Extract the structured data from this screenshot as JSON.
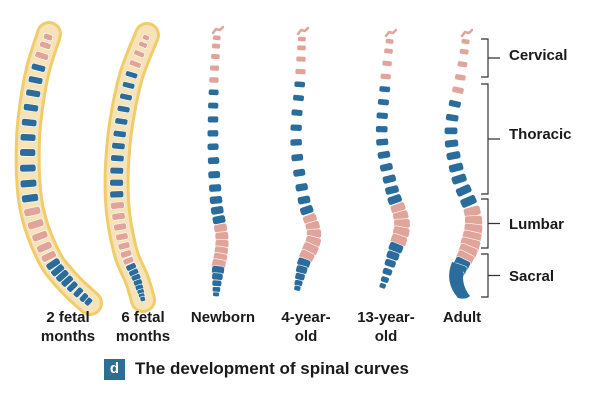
{
  "figure": {
    "stages": [
      {
        "id": "fetal-2",
        "line1": "2 fetal",
        "line2": "months"
      },
      {
        "id": "fetal-6",
        "line1": "6 fetal",
        "line2": "months"
      },
      {
        "id": "newborn",
        "line1": "Newborn",
        "line2": ""
      },
      {
        "id": "year-4",
        "line1": "4-year-",
        "line2": "old"
      },
      {
        "id": "year-13",
        "line1": "13-year-",
        "line2": "old"
      },
      {
        "id": "adult",
        "line1": "Adult",
        "line2": ""
      }
    ],
    "regions": [
      "Cervical",
      "Thoracic",
      "Lumbar",
      "Sacral"
    ],
    "caption": {
      "badge": "d",
      "text": "The development of spinal curves"
    }
  },
  "colors": {
    "vertebra_blue": "#2a6d9c",
    "vertebra_pink": "#e0a49a",
    "fetal_outline": "#f0c75a",
    "bracket": "#333333",
    "caption_badge": "#2c6f93"
  }
}
